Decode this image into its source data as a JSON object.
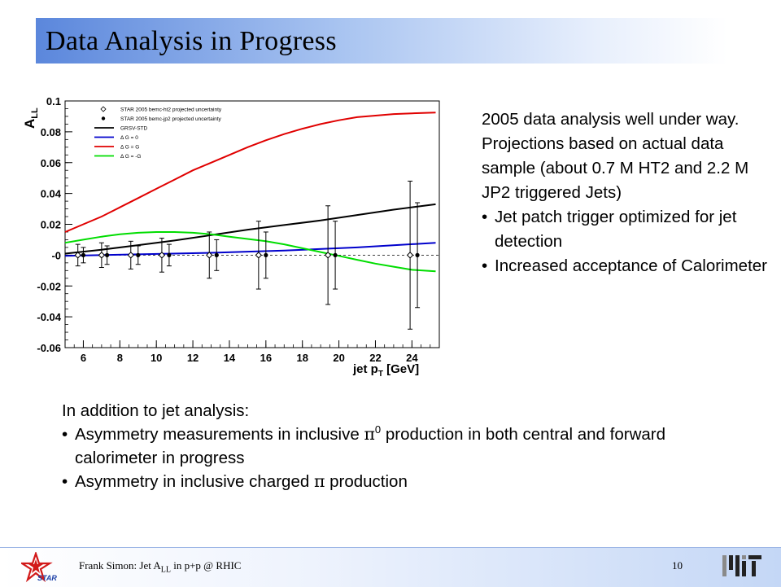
{
  "slide": {
    "title": "Data Analysis in Progress",
    "right_paragraph": "2005 data analysis well under way. Projections based on actual data sample (about 0.7 M HT2 and 2.2 M JP2 triggered Jets)",
    "right_bullets": [
      "Jet patch trigger optimized for jet detection",
      "Increased acceptance of Calorimeter"
    ],
    "bottom_intro": "In addition to jet analysis:",
    "bottom_bullet1_a": "Asymmetry measurements in inclusive ",
    "pi_symbol": "π",
    "pi_superscript": "0",
    "bottom_bullet1_b": " production in both central and forward calorimeter in progress",
    "bottom_bullet2_a": "Asymmetry in inclusive charged ",
    "bottom_bullet2_b": " production",
    "bullet_char": "•"
  },
  "footer": {
    "text_a": "Frank Simon: Jet A",
    "text_sub": "LL",
    "text_b": " in p+p @ RHIC",
    "page_number": "10",
    "star_label": "STAR",
    "mit_label": "MIT"
  },
  "chart_data": {
    "type": "scatter",
    "ylabel": "A",
    "ylabel_sub": "LL",
    "xlabel": "jet p",
    "xlabel_sub": "T",
    "xlabel_unit": " [GeV]",
    "xlim": [
      5,
      25.5
    ],
    "ylim": [
      -0.06,
      0.1
    ],
    "xticks": [
      6,
      8,
      10,
      12,
      14,
      16,
      18,
      20,
      22,
      24
    ],
    "yticks": [
      -0.06,
      -0.04,
      -0.02,
      0,
      0.02,
      0.04,
      0.06,
      0.08,
      0.1
    ],
    "ytick_labels": [
      "-0.06",
      "-0.04",
      "-0.02",
      "-0",
      "0.02",
      "0.04",
      "0.06",
      "0.08",
      "0.1"
    ],
    "grid": false,
    "legend_position": "top-left",
    "legend": [
      {
        "label": "STAR 2005 bemc-ht2 projected uncertainty",
        "marker": "open-diamond"
      },
      {
        "label": "STAR 2005 bemc-jp2 projected uncertainty",
        "marker": "filled-circle"
      },
      {
        "label": "GRSV-STD",
        "color": "#000000"
      },
      {
        "label": "Δ G = 0",
        "color": "#0000cc"
      },
      {
        "label": "Δ G = G",
        "color": "#e00000"
      },
      {
        "label": "Δ G = -G",
        "color": "#00dd00"
      }
    ],
    "curves": [
      {
        "name": "GRSV-STD",
        "color": "#000000",
        "x": [
          5,
          7,
          9,
          11,
          13,
          15,
          17,
          19,
          21,
          23,
          25.3
        ],
        "y": [
          0.001,
          0.0035,
          0.0065,
          0.0095,
          0.013,
          0.0165,
          0.0195,
          0.0225,
          0.026,
          0.0295,
          0.033
        ]
      },
      {
        "name": "Δ G = 0",
        "color": "#0000cc",
        "x": [
          5,
          9,
          13,
          17,
          21,
          25.3
        ],
        "y": [
          -0.0005,
          0.0005,
          0.0015,
          0.003,
          0.005,
          0.008
        ]
      },
      {
        "name": "Δ G = G",
        "color": "#e00000",
        "x": [
          5,
          6,
          7,
          8,
          9,
          10,
          11,
          12,
          13,
          14,
          15,
          16,
          17,
          18,
          19,
          20,
          21,
          22,
          23,
          24,
          25.3
        ],
        "y": [
          0.015,
          0.02,
          0.025,
          0.031,
          0.037,
          0.043,
          0.049,
          0.055,
          0.06,
          0.065,
          0.07,
          0.0745,
          0.0785,
          0.082,
          0.085,
          0.0875,
          0.0895,
          0.0905,
          0.0915,
          0.092,
          0.0925
        ]
      },
      {
        "name": "Δ G = -G",
        "color": "#00dd00",
        "x": [
          5,
          6,
          7,
          8,
          9,
          10,
          11,
          12,
          13,
          14,
          15,
          16,
          17,
          18,
          19,
          20,
          21,
          22,
          23,
          24,
          25.3
        ],
        "y": [
          0.008,
          0.01,
          0.012,
          0.0135,
          0.0145,
          0.015,
          0.015,
          0.0145,
          0.0135,
          0.012,
          0.0105,
          0.009,
          0.007,
          0.0045,
          0.002,
          -0.0005,
          -0.003,
          -0.0055,
          -0.0075,
          -0.0095,
          -0.0105
        ]
      }
    ],
    "series": [
      {
        "name": "STAR 2005 bemc-ht2 projected uncertainty",
        "marker": "open-diamond",
        "x": [
          5.7,
          7.0,
          8.6,
          10.3,
          12.9,
          15.6,
          19.4,
          23.9
        ],
        "y": [
          0,
          0,
          0,
          0,
          0,
          0,
          0,
          0
        ],
        "err": [
          0.007,
          0.008,
          0.009,
          0.011,
          0.015,
          0.022,
          0.032,
          0.048
        ]
      },
      {
        "name": "STAR 2005 bemc-jp2 projected uncertainty",
        "marker": "filled-circle",
        "x": [
          6.0,
          7.3,
          9.0,
          10.7,
          13.3,
          16.0,
          19.8,
          24.3
        ],
        "y": [
          0,
          0,
          0,
          0,
          0,
          0,
          0,
          0
        ],
        "err": [
          0.005,
          0.006,
          0.006,
          0.007,
          0.01,
          0.015,
          0.022,
          0.034
        ]
      }
    ]
  }
}
